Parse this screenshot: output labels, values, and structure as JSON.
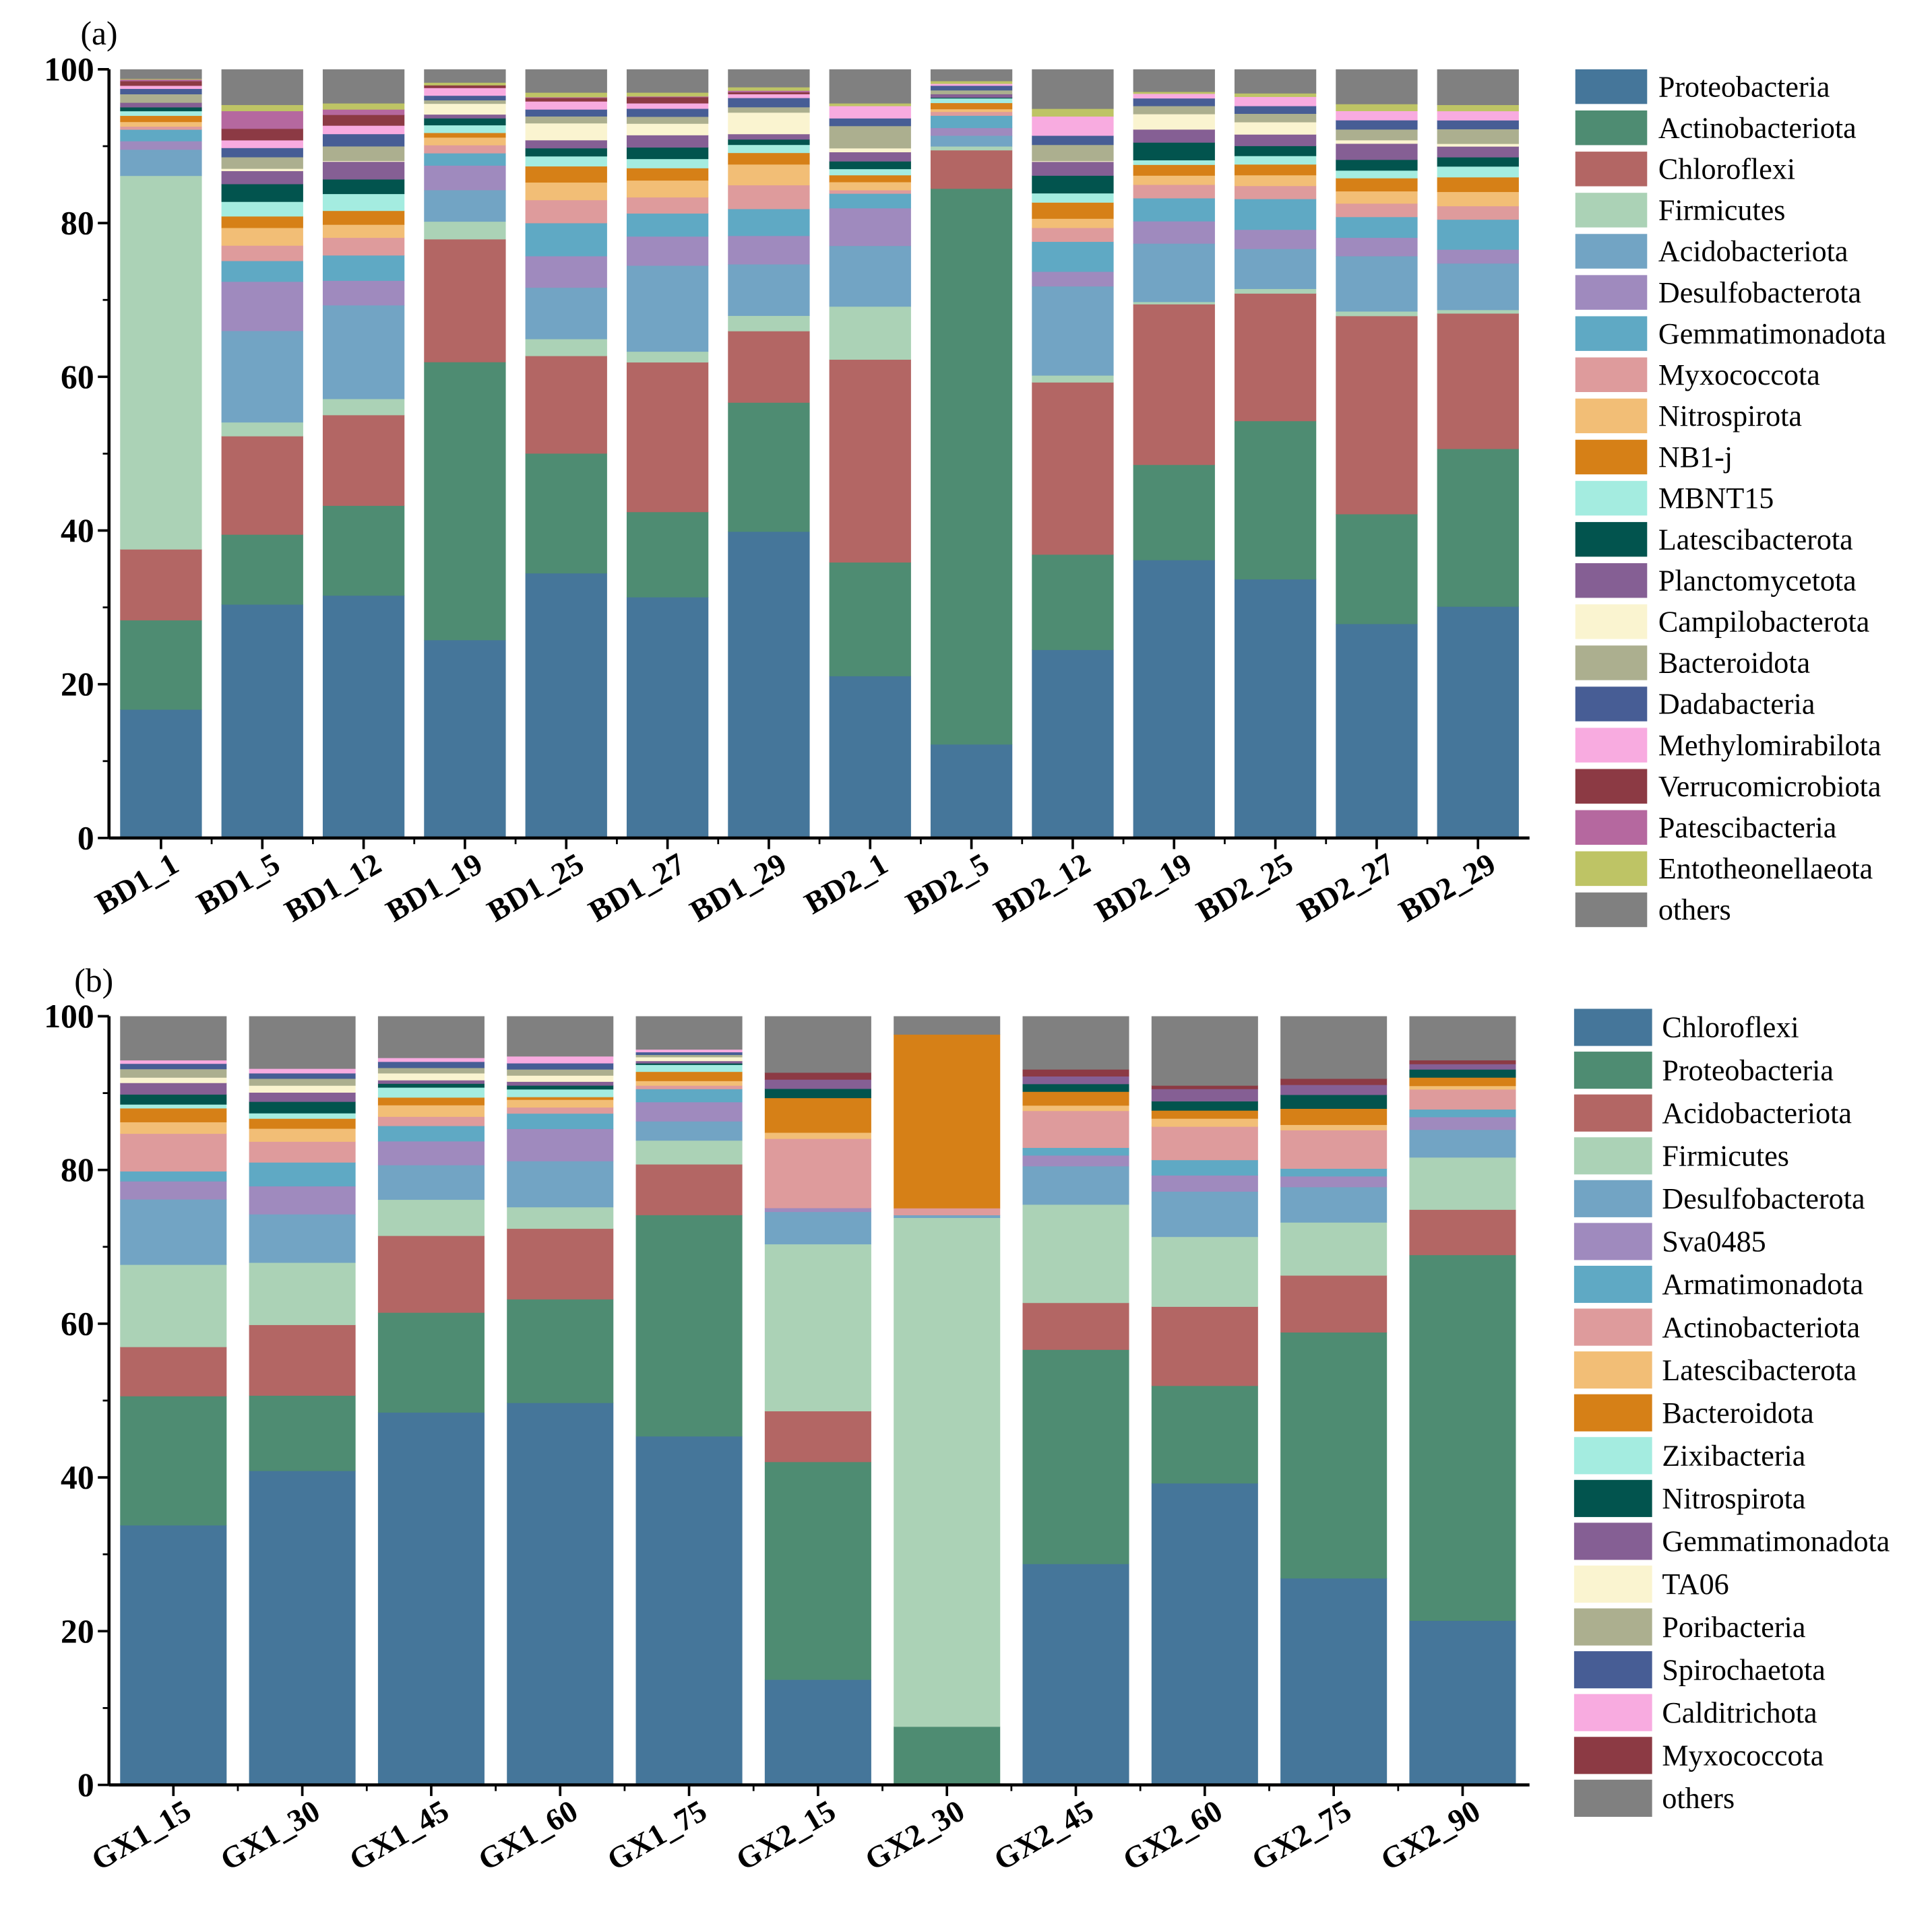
{
  "chart_data": [
    {
      "type": "bar",
      "stacked": true,
      "panel_label": "(a)",
      "title": "",
      "xlabel": "",
      "ylabel": "",
      "ylim": [
        0,
        100
      ],
      "yticks": [
        "0",
        "20",
        "40",
        "60",
        "80",
        "100"
      ],
      "legend_position": "right",
      "categories": [
        "BD1_1",
        "BD1_5",
        "BD1_12",
        "BD1_19",
        "BD1_25",
        "BD1_27",
        "BD1_29",
        "BD2_1",
        "BD2_5",
        "BD2_12",
        "BD2_19",
        "BD2_25",
        "BD2_27",
        "BD2_29"
      ],
      "series": [
        {
          "name": "Proteobacteria",
          "color": "#45769a",
          "values": [
            16.7,
            30.4,
            31.6,
            25.8,
            34.5,
            31.4,
            39.9,
            21.1,
            12.2,
            24.5,
            36.2,
            33.7,
            27.9,
            30.1
          ]
        },
        {
          "name": "Actinobacteriota",
          "color": "#4e8c72",
          "values": [
            11.6,
            9.1,
            11.7,
            36.2,
            15.6,
            11.1,
            16.8,
            14.8,
            72.3,
            12.4,
            12.4,
            20.6,
            14.3,
            20.5
          ]
        },
        {
          "name": "Chloroflexi",
          "color": "#b36664",
          "values": [
            9.2,
            12.8,
            11.8,
            16.0,
            12.7,
            19.5,
            9.3,
            26.4,
            5.0,
            22.4,
            20.9,
            16.6,
            25.8,
            17.6
          ]
        },
        {
          "name": "Firmicutes",
          "color": "#abd2b6",
          "values": [
            48.5,
            1.8,
            2.1,
            2.3,
            2.2,
            1.4,
            2.0,
            6.9,
            0.5,
            0.9,
            0.3,
            0.6,
            0.6,
            0.45
          ]
        },
        {
          "name": "Acidobacteriota",
          "color": "#72a4c4",
          "values": [
            3.4,
            11.9,
            12.2,
            4.1,
            6.7,
            11.2,
            6.7,
            7.9,
            1.4,
            11.6,
            7.6,
            5.2,
            7.2,
            6.05
          ]
        },
        {
          "name": "Desulfobacterota",
          "color": "#9f8abe",
          "values": [
            1.1,
            6.4,
            3.2,
            3.2,
            4.1,
            3.8,
            3.7,
            4.9,
            1.0,
            1.9,
            2.9,
            2.5,
            2.4,
            1.8
          ]
        },
        {
          "name": "Gemmatimonadota",
          "color": "#5fa9c4",
          "values": [
            1.5,
            2.7,
            3.3,
            1.6,
            4.3,
            3.0,
            3.5,
            1.9,
            1.6,
            3.9,
            3.0,
            4.0,
            2.7,
            3.9
          ]
        },
        {
          "name": "Myxococcota",
          "color": "#de9b9c",
          "values": [
            0.4,
            2.0,
            2.3,
            1.05,
            3.0,
            2.1,
            3.1,
            0.45,
            0.5,
            1.8,
            1.75,
            1.7,
            1.75,
            1.75
          ]
        },
        {
          "name": "Nitrospirota",
          "color": "#f2be76",
          "values": [
            0.6,
            2.3,
            1.7,
            1.0,
            2.3,
            2.2,
            2.7,
            1.05,
            0.35,
            1.2,
            1.2,
            1.4,
            1.6,
            1.85
          ]
        },
        {
          "name": "NB1-j",
          "color": "#d68017",
          "values": [
            0.8,
            1.5,
            1.8,
            0.6,
            2.1,
            1.6,
            1.5,
            0.9,
            0.8,
            2.1,
            1.4,
            1.4,
            1.7,
            1.9
          ]
        },
        {
          "name": "MBNT15",
          "color": "#a4ece0",
          "values": [
            0.6,
            1.9,
            2.2,
            1.0,
            1.3,
            1.2,
            1.05,
            0.8,
            0.6,
            1.2,
            0.6,
            1.1,
            1.0,
            1.4
          ]
        },
        {
          "name": "Latescibacterota",
          "color": "#02544e",
          "values": [
            0.5,
            2.3,
            1.9,
            0.9,
            1.05,
            1.5,
            0.7,
            1.0,
            0.1,
            2.3,
            2.3,
            1.3,
            1.4,
            1.2
          ]
        },
        {
          "name": "Planctomycetota",
          "color": "#855f94",
          "values": [
            0.6,
            1.7,
            2.3,
            0.5,
            1.05,
            1.6,
            0.7,
            1.2,
            0.45,
            1.8,
            1.7,
            1.5,
            2.1,
            1.4
          ]
        },
        {
          "name": "Campilobacterota",
          "color": "#faf4d0",
          "values": [
            0,
            0.3,
            0.1,
            1.4,
            2.2,
            1.5,
            2.8,
            0.5,
            0,
            0.1,
            2.0,
            1.6,
            0.45,
            0.35
          ]
        },
        {
          "name": "Bacteroidota",
          "color": "#acaf8f",
          "values": [
            1.1,
            1.5,
            1.9,
            0.45,
            0.9,
            0.9,
            0.7,
            2.9,
            0.5,
            2.1,
            1.05,
            1.1,
            1.4,
            1.9
          ]
        },
        {
          "name": "Dadabacteria",
          "color": "#475d95",
          "values": [
            0.7,
            1.2,
            1.6,
            0.6,
            0.9,
            1.05,
            1.2,
            1.0,
            0.6,
            1.2,
            1.0,
            1.0,
            1.2,
            1.15
          ]
        },
        {
          "name": "Methylomirabilota",
          "color": "#f8abe0",
          "values": [
            0.4,
            1.0,
            1.1,
            1.0,
            1.05,
            0.7,
            0.5,
            1.6,
            0.25,
            2.5,
            0.6,
            1.2,
            1.2,
            1.2
          ]
        },
        {
          "name": "Verrucomicrobiota",
          "color": "#8c3a44",
          "values": [
            0.6,
            1.5,
            1.4,
            0.35,
            0.45,
            0.8,
            0.25,
            0,
            0,
            0,
            0,
            0,
            0,
            0
          ]
        },
        {
          "name": "Patescibacteria",
          "color": "#b5689f",
          "values": [
            0.2,
            2.3,
            0.7,
            0,
            0.1,
            0.1,
            0.2,
            0,
            0,
            0,
            0,
            0,
            0,
            0
          ]
        },
        {
          "name": "Entotheonellaeota",
          "color": "#bec465",
          "values": [
            0.1,
            0.8,
            0.8,
            0.35,
            0.6,
            0.5,
            0.45,
            0.35,
            0.35,
            1.0,
            0.25,
            0.45,
            0.9,
            0.8
          ]
        },
        {
          "name": "others",
          "color": "#808080",
          "values": [
            1.2,
            4.6,
            4.4,
            1.7,
            3.0,
            3.0,
            2.3,
            4.4,
            1.5,
            5.1,
            2.9,
            3.1,
            4.5,
            4.6
          ]
        }
      ]
    },
    {
      "type": "bar",
      "stacked": true,
      "panel_label": "(b)",
      "title": "",
      "xlabel": "",
      "ylabel": "",
      "ylim": [
        0,
        100
      ],
      "yticks": [
        "0",
        "20",
        "40",
        "60",
        "80",
        "100"
      ],
      "legend_position": "right",
      "categories": [
        "GX1_15",
        "GX1_30",
        "GX1_45",
        "GX1_60",
        "GX1_75",
        "GX2_15",
        "GX2_30",
        "GX2_45",
        "GX2_60",
        "GX2_75",
        "GX2_90"
      ],
      "series": [
        {
          "name": "Chloroflexi",
          "color": "#45769a",
          "values": [
            33.8,
            40.9,
            48.5,
            49.8,
            45.4,
            13.7,
            0,
            28.8,
            39.3,
            26.9,
            21.4
          ]
        },
        {
          "name": "Proteobacteria",
          "color": "#4e8c72",
          "values": [
            16.8,
            9.8,
            13.0,
            13.5,
            28.8,
            28.3,
            7.6,
            27.9,
            12.7,
            32.0,
            47.6
          ]
        },
        {
          "name": "Acidobacteriota",
          "color": "#b36664",
          "values": [
            6.4,
            9.2,
            10.0,
            9.2,
            6.6,
            6.6,
            0,
            6.1,
            10.3,
            7.4,
            5.9
          ]
        },
        {
          "name": "Firmicutes",
          "color": "#abd2b6",
          "values": [
            10.7,
            8.1,
            4.7,
            2.8,
            3.1,
            21.7,
            66.2,
            12.8,
            9.1,
            6.9,
            6.8
          ]
        },
        {
          "name": "Desulfobacterota",
          "color": "#72a4c4",
          "values": [
            8.5,
            6.3,
            4.5,
            6.0,
            2.5,
            4.2,
            0.35,
            5.0,
            5.9,
            4.6,
            3.6
          ]
        },
        {
          "name": "Sva0485",
          "color": "#9f8abe",
          "values": [
            2.35,
            3.65,
            3.1,
            4.2,
            2.5,
            0.5,
            0,
            1.4,
            2.1,
            1.4,
            1.65
          ]
        },
        {
          "name": "Armatimonadota",
          "color": "#5fa9c4",
          "values": [
            1.3,
            3.1,
            2.0,
            2.0,
            1.7,
            0,
            0,
            1.0,
            2.0,
            1.0,
            1.0
          ]
        },
        {
          "name": "Actinobacteriota",
          "color": "#de9b9c",
          "values": [
            4.9,
            2.7,
            1.2,
            0.8,
            0.45,
            9.0,
            0.9,
            4.8,
            4.35,
            5.0,
            2.6
          ]
        },
        {
          "name": "Latescibacterota",
          "color": "#f2be76",
          "values": [
            1.5,
            1.7,
            1.5,
            1.0,
            0.6,
            0.8,
            0,
            0.7,
            1.05,
            0.7,
            0.45
          ]
        },
        {
          "name": "Bacteroidota",
          "color": "#d68017",
          "values": [
            1.8,
            1.3,
            1.0,
            0.35,
            1.2,
            4.5,
            22.6,
            1.8,
            1.05,
            2.1,
            1.1
          ]
        },
        {
          "name": "Zixibacteria",
          "color": "#a4ece0",
          "values": [
            0.5,
            0.7,
            1.3,
            1.0,
            0.9,
            0,
            0,
            0,
            0,
            0,
            0
          ]
        },
        {
          "name": "Nitrospirota",
          "color": "#02544e",
          "values": [
            1.3,
            1.5,
            0.5,
            0.5,
            0.2,
            1.2,
            0,
            1.0,
            1.2,
            1.8,
            1.05
          ]
        },
        {
          "name": "Gemmatimonadota",
          "color": "#855f94",
          "values": [
            1.5,
            1.2,
            0.45,
            0.5,
            0.3,
            1.2,
            0,
            1.0,
            1.6,
            1.3,
            0.7
          ]
        },
        {
          "name": "TA06",
          "color": "#faf4d0",
          "values": [
            0.7,
            0.9,
            0.9,
            0.8,
            0.5,
            0,
            0,
            0,
            0,
            0,
            0
          ]
        },
        {
          "name": "Poribacteria",
          "color": "#acaf8f",
          "values": [
            1.1,
            0.9,
            0.7,
            0.8,
            0.3,
            0,
            0,
            0,
            0,
            0,
            0
          ]
        },
        {
          "name": "Spirochaetota",
          "color": "#475d95",
          "values": [
            0.7,
            0.7,
            0.8,
            0.8,
            0.35,
            0,
            0,
            0,
            0,
            0,
            0
          ]
        },
        {
          "name": "Calditrichota",
          "color": "#f8abe0",
          "values": [
            0.45,
            0.6,
            0.5,
            0.9,
            0.35,
            0,
            0,
            0,
            0,
            0,
            0
          ]
        },
        {
          "name": "Myxococcota",
          "color": "#8c3a44",
          "values": [
            0,
            0,
            0,
            0,
            0,
            0.9,
            0,
            0.9,
            0.45,
            0.8,
            0.5
          ]
        },
        {
          "name": "others",
          "color": "#808080",
          "values": [
            5.7,
            6.8,
            5.4,
            5.2,
            4.3,
            7.3,
            2.35,
            6.9,
            9.0,
            8.1,
            5.7
          ]
        }
      ]
    }
  ]
}
